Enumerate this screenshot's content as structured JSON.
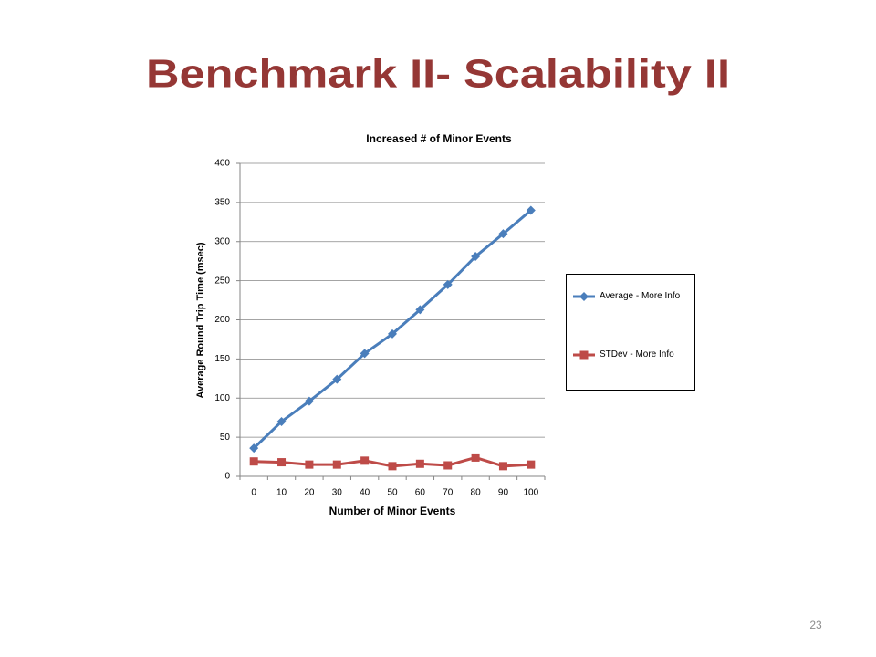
{
  "slide_title": "Benchmark II- Scalability II",
  "page_number": "23",
  "chart_data": {
    "type": "line",
    "title": "Increased # of Minor Events",
    "x_label": "Number of Minor Events",
    "y_label": "Average Round Trip Time (msec)",
    "categories": [
      "0",
      "10",
      "20",
      "30",
      "40",
      "50",
      "60",
      "70",
      "80",
      "90",
      "100"
    ],
    "series": [
      {
        "name": "Average - More Info",
        "color": "#4a7ebb",
        "marker": "diamond",
        "values": [
          36,
          70,
          96,
          124,
          157,
          182,
          213,
          245,
          281,
          310,
          340
        ]
      },
      {
        "name": "STDev - More Info",
        "color": "#be4b48",
        "marker": "square",
        "values": [
          19,
          18,
          15,
          15,
          20,
          13,
          16,
          14,
          24,
          13,
          15
        ]
      }
    ],
    "ylim": [
      0,
      400
    ],
    "yticks": [
      0,
      50,
      100,
      150,
      200,
      250,
      300,
      350,
      400
    ],
    "grid": true,
    "legend": "right"
  }
}
